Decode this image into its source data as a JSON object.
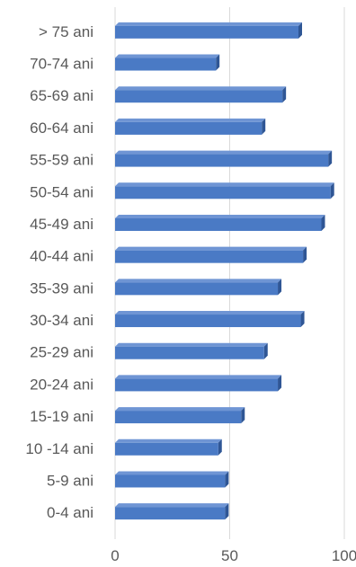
{
  "chart_data": {
    "type": "bar",
    "orientation": "horizontal",
    "style": "3d",
    "categories": [
      "> 75 ani",
      "70-74 ani",
      "65-69 ani",
      "60-64 ani",
      "55-59 ani",
      "50-54 ani",
      "45-49 ani",
      "40-44 ani",
      "35-39 ani",
      "30-34 ani",
      "25-29 ani",
      "20-24 ani",
      "15-19 ani",
      "10 -14 ani",
      "5-9 ani",
      "0-4 ani"
    ],
    "values": [
      80,
      44,
      73,
      64,
      93,
      94,
      90,
      82,
      71,
      81,
      65,
      71,
      55,
      45,
      48,
      48
    ],
    "xlim": [
      0,
      100
    ],
    "xticks": [
      0,
      50,
      100
    ],
    "title": "",
    "xlabel": "",
    "ylabel": "",
    "grid": "vertical",
    "legend": "none",
    "colors": {
      "bar_front": "#4a7ac5",
      "bar_top": "#6f95d4",
      "bar_side": "#2f5695",
      "grid": "#d9d9d9",
      "text": "#595959"
    }
  }
}
